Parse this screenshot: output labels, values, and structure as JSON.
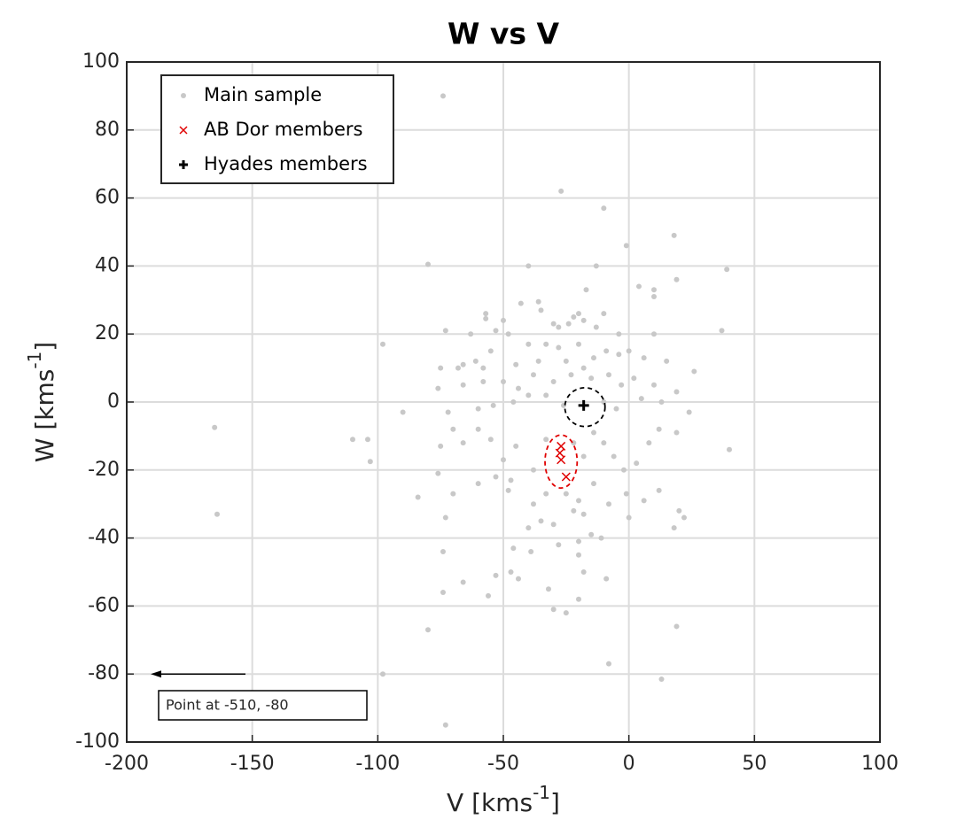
{
  "chart_data": {
    "type": "scatter",
    "title": "W vs V",
    "xlabel": {
      "text": "V [kms",
      "sup": "-1",
      "end": "]"
    },
    "ylabel": {
      "text": "W [kms",
      "sup": "-1",
      "end": "]"
    },
    "xlim": [
      -200,
      100
    ],
    "xticks": [
      -200,
      -150,
      -100,
      -50,
      0,
      50,
      100
    ],
    "ylim": [
      -100,
      100
    ],
    "yticks": [
      -100,
      -80,
      -60,
      -40,
      -20,
      0,
      20,
      40,
      60,
      80,
      100
    ],
    "grid": true,
    "legend": "upper left",
    "series": [
      {
        "name": "Main sample",
        "color": "#c8c8c8",
        "marker": "dot",
        "x": [
          -74,
          -27,
          -10,
          18,
          -1,
          -80,
          -40,
          -13,
          39,
          4,
          10,
          19,
          -17,
          10,
          -43,
          -36,
          -35,
          -57,
          -57,
          -50,
          -20,
          -22,
          -10,
          -30,
          -28,
          37,
          -73,
          -63,
          -53,
          -48,
          -24,
          -18,
          -13,
          -4,
          10,
          -98,
          -40,
          -33,
          -28,
          -20,
          -9,
          0,
          -55,
          -61,
          -66,
          -75,
          -68,
          -58,
          -45,
          -36,
          -25,
          -18,
          -14,
          -4,
          6,
          15,
          26,
          -76,
          -66,
          -58,
          -50,
          -44,
          -38,
          -30,
          -23,
          -15,
          -8,
          -3,
          2,
          10,
          19,
          -90,
          -72,
          -60,
          -54,
          -46,
          -40,
          -33,
          -26,
          -10,
          -5,
          5,
          13,
          24,
          -110,
          -104,
          -103,
          -165,
          -164,
          -84,
          -76,
          -75,
          -70,
          -66,
          -60,
          -55,
          -50,
          -45,
          -38,
          -33,
          -22,
          -18,
          -14,
          -10,
          -6,
          -2,
          3,
          8,
          12,
          19,
          40,
          -73,
          -70,
          -60,
          -53,
          -48,
          -47,
          -38,
          -33,
          -25,
          -20,
          -14,
          -8,
          -1,
          6,
          12,
          20,
          22,
          18,
          -40,
          -35,
          -30,
          -22,
          -18,
          -15,
          -11,
          0,
          -28,
          -20,
          -74,
          -46,
          -39,
          -47,
          -20,
          -18,
          -66,
          -53,
          -44,
          -9,
          -74,
          -56,
          -32,
          -20,
          -30,
          -25,
          -80,
          19,
          -8,
          -98,
          13,
          -73
        ],
        "y": [
          90,
          62,
          57,
          49,
          46,
          40.5,
          40,
          40,
          39,
          34,
          33,
          36,
          33,
          31,
          29,
          29.5,
          27,
          26,
          24.5,
          24,
          26,
          25,
          26,
          23,
          22,
          21,
          21,
          20,
          21,
          20,
          23,
          24,
          22,
          20,
          20,
          17,
          17,
          17,
          16,
          17,
          15,
          15,
          15,
          12,
          11,
          10,
          10,
          10,
          11,
          12,
          12,
          10,
          13,
          14,
          13,
          12,
          9,
          4,
          5,
          6,
          6,
          4,
          8,
          6,
          8,
          7,
          8,
          5,
          7,
          5,
          3,
          -3,
          -3,
          -2,
          -1,
          0,
          2,
          2,
          -1,
          0,
          -2,
          1,
          0,
          -3,
          -11,
          -11,
          -17.5,
          -7.5,
          -33,
          -28,
          -21,
          -13,
          -8,
          -12,
          -8,
          -11,
          -17,
          -13,
          -20,
          -11,
          -12,
          -16,
          -9,
          -12,
          -16,
          -20,
          -18,
          -12,
          -8,
          -9,
          -14,
          -34,
          -27,
          -24,
          -22,
          -26,
          -23,
          -30,
          -27,
          -27,
          -29,
          -24,
          -30,
          -27,
          -29,
          -26,
          -32,
          -34,
          -37,
          -37,
          -35,
          -36,
          -32,
          -33,
          -39,
          -40,
          -34,
          -42,
          -41,
          -44,
          -43,
          -44,
          -50,
          -45,
          -50,
          -53,
          -51,
          -52,
          -52,
          -56,
          -57,
          -55,
          -58,
          -61,
          -62,
          -67,
          -66,
          -77,
          -80,
          -81.5,
          -95
        ]
      },
      {
        "name": "AB Dor members",
        "color": "#e00000",
        "marker": "x",
        "x": [
          -27,
          -27.5,
          -27,
          -25
        ],
        "y": [
          -13,
          -15,
          -17,
          -22
        ]
      },
      {
        "name": "Hyades members",
        "color": "#000000",
        "marker": "plus",
        "x": [
          -18
        ],
        "y": [
          -1
        ]
      }
    ],
    "ellipses": [
      {
        "color": "#000000",
        "center": [
          -17.5,
          -1.5
        ],
        "radii": [
          8,
          5.7
        ]
      },
      {
        "color": "#e00000",
        "center": [
          -27,
          -17.5
        ],
        "radii": [
          6.4,
          7.8
        ]
      }
    ],
    "annotation": {
      "text": "Point at -510, -80",
      "x": -510,
      "y": -80
    }
  }
}
